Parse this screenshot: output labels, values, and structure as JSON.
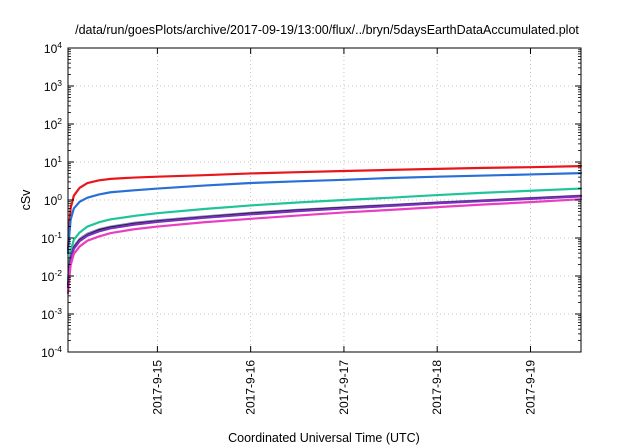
{
  "chart_data": {
    "type": "line",
    "title": "/data/run/goesPlots/archive/2017-09-19/13:00/flux/../bryn/5daysEarthDataAccumulated.plot",
    "xlabel": "Coordinated Universal Time (UTC)",
    "ylabel": "cSv",
    "yscale": "log",
    "ylim": [
      0.0001,
      10000
    ],
    "xlim": [
      "2017-09-14 01:00",
      "2017-09-19 13:00"
    ],
    "grid": true,
    "legend": "none",
    "x_ticks": [
      {
        "value": "2017-09-15 00:00",
        "label": "2017-9-15"
      },
      {
        "value": "2017-09-16 00:00",
        "label": "2017-9-16"
      },
      {
        "value": "2017-09-17 00:00",
        "label": "2017-9-17"
      },
      {
        "value": "2017-09-18 00:00",
        "label": "2017-9-18"
      },
      {
        "value": "2017-09-19 00:00",
        "label": "2017-9-19"
      }
    ],
    "y_ticks": [
      {
        "value": 0.0001,
        "base": "10",
        "exp": "-4"
      },
      {
        "value": 0.001,
        "base": "10",
        "exp": "-3"
      },
      {
        "value": 0.01,
        "base": "10",
        "exp": "-2"
      },
      {
        "value": 0.1,
        "base": "10",
        "exp": "-1"
      },
      {
        "value": 1,
        "base": "10",
        "exp": "0"
      },
      {
        "value": 10,
        "base": "10",
        "exp": "1"
      },
      {
        "value": 100,
        "base": "10",
        "exp": "2"
      },
      {
        "value": 1000,
        "base": "10",
        "exp": "3"
      },
      {
        "value": 10000,
        "base": "10",
        "exp": "4"
      }
    ],
    "series": [
      {
        "color": "#e8161b",
        "points": [
          [
            "2017-09-14 01:00",
            0.05
          ],
          [
            "2017-09-14 01:20",
            0.2
          ],
          [
            "2017-09-14 01:40",
            0.6
          ],
          [
            "2017-09-14 02:30",
            1.3
          ],
          [
            "2017-09-14 04:00",
            2.1
          ],
          [
            "2017-09-14 06:00",
            2.8
          ],
          [
            "2017-09-14 09:00",
            3.3
          ],
          [
            "2017-09-14 12:00",
            3.6
          ],
          [
            "2017-09-14 18:00",
            3.9
          ],
          [
            "2017-09-15 00:00",
            4.1
          ],
          [
            "2017-09-15 12:00",
            4.5
          ],
          [
            "2017-09-16 00:00",
            5.0
          ],
          [
            "2017-09-16 12:00",
            5.4
          ],
          [
            "2017-09-17 00:00",
            5.8
          ],
          [
            "2017-09-17 12:00",
            6.2
          ],
          [
            "2017-09-18 00:00",
            6.6
          ],
          [
            "2017-09-18 12:00",
            7.0
          ],
          [
            "2017-09-19 00:00",
            7.3
          ],
          [
            "2017-09-19 13:00",
            7.8
          ]
        ]
      },
      {
        "color": "#2a6fd6",
        "points": [
          [
            "2017-09-14 01:00",
            0.04
          ],
          [
            "2017-09-14 01:20",
            0.12
          ],
          [
            "2017-09-14 01:40",
            0.3
          ],
          [
            "2017-09-14 02:30",
            0.6
          ],
          [
            "2017-09-14 04:00",
            0.9
          ],
          [
            "2017-09-14 06:00",
            1.15
          ],
          [
            "2017-09-14 09:00",
            1.4
          ],
          [
            "2017-09-14 12:00",
            1.6
          ],
          [
            "2017-09-14 18:00",
            1.8
          ],
          [
            "2017-09-15 00:00",
            2.0
          ],
          [
            "2017-09-15 12:00",
            2.4
          ],
          [
            "2017-09-16 00:00",
            2.8
          ],
          [
            "2017-09-16 12:00",
            3.1
          ],
          [
            "2017-09-17 00:00",
            3.4
          ],
          [
            "2017-09-17 12:00",
            3.8
          ],
          [
            "2017-09-18 00:00",
            4.1
          ],
          [
            "2017-09-18 12:00",
            4.4
          ],
          [
            "2017-09-19 00:00",
            4.7
          ],
          [
            "2017-09-19 13:00",
            5.1
          ]
        ]
      },
      {
        "color": "#1fc49a",
        "points": [
          [
            "2017-09-14 01:00",
            0.008
          ],
          [
            "2017-09-14 01:20",
            0.02
          ],
          [
            "2017-09-14 01:40",
            0.045
          ],
          [
            "2017-09-14 02:30",
            0.09
          ],
          [
            "2017-09-14 04:00",
            0.14
          ],
          [
            "2017-09-14 06:00",
            0.2
          ],
          [
            "2017-09-14 09:00",
            0.26
          ],
          [
            "2017-09-14 12:00",
            0.31
          ],
          [
            "2017-09-14 18:00",
            0.38
          ],
          [
            "2017-09-15 00:00",
            0.45
          ],
          [
            "2017-09-15 12:00",
            0.58
          ],
          [
            "2017-09-16 00:00",
            0.72
          ],
          [
            "2017-09-16 12:00",
            0.86
          ],
          [
            "2017-09-17 00:00",
            1.0
          ],
          [
            "2017-09-17 12:00",
            1.15
          ],
          [
            "2017-09-18 00:00",
            1.35
          ],
          [
            "2017-09-18 12:00",
            1.55
          ],
          [
            "2017-09-19 00:00",
            1.75
          ],
          [
            "2017-09-19 13:00",
            2.0
          ]
        ]
      },
      {
        "color": "#8a7fd1",
        "points": [
          [
            "2017-09-14 01:00",
            0.006
          ],
          [
            "2017-09-14 01:20",
            0.015
          ],
          [
            "2017-09-14 01:40",
            0.03
          ],
          [
            "2017-09-14 02:30",
            0.06
          ],
          [
            "2017-09-14 04:00",
            0.095
          ],
          [
            "2017-09-14 06:00",
            0.13
          ],
          [
            "2017-09-14 09:00",
            0.17
          ],
          [
            "2017-09-14 12:00",
            0.2
          ],
          [
            "2017-09-14 18:00",
            0.25
          ],
          [
            "2017-09-15 00:00",
            0.29
          ],
          [
            "2017-09-15 12:00",
            0.37
          ],
          [
            "2017-09-16 00:00",
            0.46
          ],
          [
            "2017-09-16 12:00",
            0.55
          ],
          [
            "2017-09-17 00:00",
            0.64
          ],
          [
            "2017-09-17 12:00",
            0.74
          ],
          [
            "2017-09-18 00:00",
            0.86
          ],
          [
            "2017-09-18 12:00",
            0.98
          ],
          [
            "2017-09-19 00:00",
            1.12
          ],
          [
            "2017-09-19 13:00",
            1.3
          ]
        ]
      },
      {
        "color": "#1a1a1a",
        "points": [
          [
            "2017-09-14 01:00",
            0.0055
          ],
          [
            "2017-09-14 01:20",
            0.014
          ],
          [
            "2017-09-14 01:40",
            0.028
          ],
          [
            "2017-09-14 02:30",
            0.055
          ],
          [
            "2017-09-14 04:00",
            0.088
          ],
          [
            "2017-09-14 06:00",
            0.12
          ],
          [
            "2017-09-14 09:00",
            0.16
          ],
          [
            "2017-09-14 12:00",
            0.19
          ],
          [
            "2017-09-14 18:00",
            0.235
          ],
          [
            "2017-09-15 00:00",
            0.275
          ],
          [
            "2017-09-15 12:00",
            0.35
          ],
          [
            "2017-09-16 00:00",
            0.44
          ],
          [
            "2017-09-16 12:00",
            0.53
          ],
          [
            "2017-09-17 00:00",
            0.62
          ],
          [
            "2017-09-17 12:00",
            0.72
          ],
          [
            "2017-09-18 00:00",
            0.84
          ],
          [
            "2017-09-18 12:00",
            0.96
          ],
          [
            "2017-09-19 00:00",
            1.1
          ],
          [
            "2017-09-19 13:00",
            1.27
          ]
        ]
      },
      {
        "color": "#7b2fbf",
        "points": [
          [
            "2017-09-14 01:00",
            0.005
          ],
          [
            "2017-09-14 01:20",
            0.013
          ],
          [
            "2017-09-14 01:40",
            0.026
          ],
          [
            "2017-09-14 02:30",
            0.052
          ],
          [
            "2017-09-14 04:00",
            0.083
          ],
          [
            "2017-09-14 06:00",
            0.115
          ],
          [
            "2017-09-14 09:00",
            0.15
          ],
          [
            "2017-09-14 12:00",
            0.18
          ],
          [
            "2017-09-14 18:00",
            0.225
          ],
          [
            "2017-09-15 00:00",
            0.265
          ],
          [
            "2017-09-15 12:00",
            0.34
          ],
          [
            "2017-09-16 00:00",
            0.42
          ],
          [
            "2017-09-16 12:00",
            0.51
          ],
          [
            "2017-09-17 00:00",
            0.6
          ],
          [
            "2017-09-17 12:00",
            0.7
          ],
          [
            "2017-09-18 00:00",
            0.82
          ],
          [
            "2017-09-18 12:00",
            0.94
          ],
          [
            "2017-09-19 00:00",
            1.07
          ],
          [
            "2017-09-19 13:00",
            1.24
          ]
        ]
      },
      {
        "color": "#e83fc2",
        "points": [
          [
            "2017-09-14 01:00",
            0.0035
          ],
          [
            "2017-09-14 01:20",
            0.009
          ],
          [
            "2017-09-14 01:40",
            0.019
          ],
          [
            "2017-09-14 02:30",
            0.038
          ],
          [
            "2017-09-14 04:00",
            0.06
          ],
          [
            "2017-09-14 06:00",
            0.085
          ],
          [
            "2017-09-14 09:00",
            0.11
          ],
          [
            "2017-09-14 12:00",
            0.135
          ],
          [
            "2017-09-14 18:00",
            0.17
          ],
          [
            "2017-09-15 00:00",
            0.2
          ],
          [
            "2017-09-15 12:00",
            0.26
          ],
          [
            "2017-09-16 00:00",
            0.32
          ],
          [
            "2017-09-16 12:00",
            0.39
          ],
          [
            "2017-09-17 00:00",
            0.47
          ],
          [
            "2017-09-17 12:00",
            0.55
          ],
          [
            "2017-09-18 00:00",
            0.65
          ],
          [
            "2017-09-18 12:00",
            0.76
          ],
          [
            "2017-09-19 00:00",
            0.88
          ],
          [
            "2017-09-19 13:00",
            1.05
          ]
        ]
      }
    ]
  }
}
